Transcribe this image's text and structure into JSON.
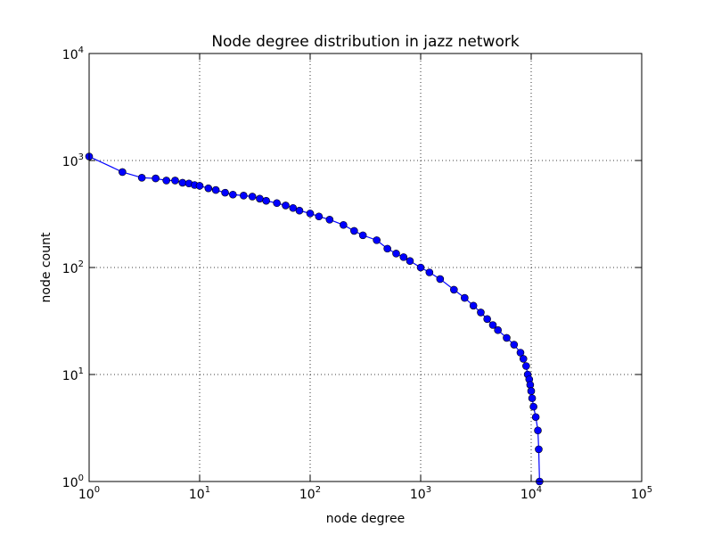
{
  "chart_data": {
    "type": "line",
    "title": "Node degree distribution in jazz network",
    "xlabel": "node degree",
    "ylabel": "node count",
    "xscale": "log",
    "yscale": "log",
    "xlim": [
      1,
      100000
    ],
    "ylim": [
      1,
      10000
    ],
    "grid": true,
    "x_ticks": [
      {
        "base": "10",
        "exp": "0",
        "value": 1
      },
      {
        "base": "10",
        "exp": "1",
        "value": 10
      },
      {
        "base": "10",
        "exp": "2",
        "value": 100
      },
      {
        "base": "10",
        "exp": "3",
        "value": 1000
      },
      {
        "base": "10",
        "exp": "4",
        "value": 10000
      },
      {
        "base": "10",
        "exp": "5",
        "value": 100000
      }
    ],
    "y_ticks": [
      {
        "base": "10",
        "exp": "0",
        "value": 1
      },
      {
        "base": "10",
        "exp": "1",
        "value": 10
      },
      {
        "base": "10",
        "exp": "2",
        "value": 100
      },
      {
        "base": "10",
        "exp": "3",
        "value": 1000
      },
      {
        "base": "10",
        "exp": "4",
        "value": 10000
      }
    ],
    "series": [
      {
        "color": "#0000ff",
        "marker": "circle",
        "x": [
          1,
          2,
          3,
          4,
          5,
          6,
          7,
          8,
          9,
          10,
          12,
          14,
          17,
          20,
          25,
          30,
          35,
          40,
          50,
          60,
          70,
          80,
          100,
          120,
          150,
          200,
          250,
          300,
          400,
          500,
          600,
          700,
          800,
          1000,
          1200,
          1500,
          2000,
          2500,
          3000,
          3500,
          4000,
          4500,
          5000,
          6000,
          7000,
          8000,
          8500,
          9000,
          9300,
          9600,
          9800,
          10000,
          10200,
          10500,
          11000,
          11500,
          11700,
          11900
        ],
        "y": [
          1090,
          780,
          690,
          680,
          650,
          650,
          620,
          610,
          590,
          580,
          550,
          530,
          500,
          480,
          470,
          460,
          440,
          420,
          400,
          380,
          360,
          340,
          320,
          300,
          280,
          250,
          220,
          200,
          180,
          150,
          135,
          125,
          115,
          100,
          90,
          78,
          62,
          52,
          44,
          38,
          33,
          29,
          26,
          22,
          19,
          16,
          14,
          12,
          10,
          9,
          8,
          7,
          6,
          5,
          4,
          3,
          2,
          1
        ]
      }
    ]
  }
}
